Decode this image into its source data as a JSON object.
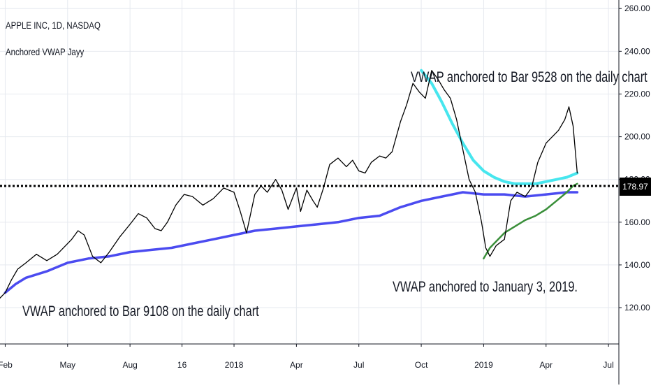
{
  "header": {
    "symbol_line": "APPLE INC, 1D, NASDAQ",
    "indicator_name": "Anchored VWAP Jayy"
  },
  "annotations": {
    "top": "VWAP anchored to Bar 9528 on the daily chart",
    "bottom_right": "VWAP anchored to January 3, 2019.",
    "bottom_left": "VWAP anchored to Bar 9108 on the daily chart"
  },
  "price_marker": {
    "label": "178.97",
    "value": 178.97
  },
  "colors": {
    "price": "#000000",
    "vwap_9108": "#4b4bf0",
    "vwap_9528": "#47e6ee",
    "vwap_jan2019": "#3a8f3a",
    "grid": "#e6e9ef"
  },
  "chart_data": {
    "type": "line",
    "x_unit": "months since Feb 2017",
    "xlim": [
      -0.25,
      29.5
    ],
    "ylim": [
      103,
      264
    ],
    "y_scale": "linear",
    "grid": true,
    "y_ticks": [
      120,
      140,
      160,
      180,
      200,
      220,
      240,
      260
    ],
    "y_tick_labels": [
      "120.00",
      "140.00",
      "160.00",
      "180.00",
      "200.00",
      "220.00",
      "240.00",
      "260.00"
    ],
    "x_ticks": [
      {
        "x": 0,
        "label": "Feb"
      },
      {
        "x": 3,
        "label": "May"
      },
      {
        "x": 6,
        "label": "Aug"
      },
      {
        "x": 8.5,
        "label": "16"
      },
      {
        "x": 11,
        "label": "2018"
      },
      {
        "x": 14,
        "label": "Apr"
      },
      {
        "x": 17,
        "label": "Jul"
      },
      {
        "x": 20,
        "label": "Oct"
      },
      {
        "x": 23,
        "label": "2019"
      },
      {
        "x": 26,
        "label": "Apr"
      },
      {
        "x": 29,
        "label": "Jul"
      }
    ],
    "series": [
      {
        "key": "price",
        "x": [
          -0.5,
          0.0,
          0.3,
          0.6,
          1.0,
          1.5,
          2.0,
          2.5,
          3.2,
          3.5,
          3.8,
          4.2,
          4.6,
          5.0,
          5.5,
          6.0,
          6.4,
          6.8,
          7.2,
          7.5,
          7.8,
          8.2,
          8.6,
          9.0,
          9.5,
          10.0,
          10.5,
          11.0,
          11.3,
          11.6,
          12.0,
          12.3,
          12.6,
          13.0,
          13.3,
          13.6,
          14.0,
          14.2,
          14.5,
          14.8,
          15.0,
          15.3,
          15.6,
          16.0,
          16.4,
          16.7,
          17.0,
          17.3,
          17.6,
          18.0,
          18.3,
          18.6,
          19.0,
          19.3,
          19.6,
          19.9,
          20.2,
          20.5,
          20.8,
          21.1,
          21.4,
          21.7,
          22.0,
          22.3,
          22.6,
          22.9,
          23.1,
          23.3,
          23.6,
          24.0,
          24.3,
          24.6,
          25.0,
          25.3,
          25.6,
          26.0,
          26.3,
          26.6,
          26.9,
          27.1,
          27.3,
          27.5
        ],
        "values": [
          122,
          127,
          133,
          138,
          141,
          145,
          142,
          145,
          152,
          156,
          154,
          144,
          141,
          146,
          153,
          159,
          164,
          162,
          157,
          156,
          160,
          168,
          173,
          172,
          168,
          171,
          176,
          174,
          165,
          155,
          173,
          177,
          174,
          180,
          175,
          166,
          176,
          165,
          175,
          170,
          167,
          176,
          187,
          190,
          186,
          189,
          184,
          183,
          188,
          191,
          190,
          193,
          207,
          215,
          225,
          221,
          218,
          231,
          227,
          222,
          218,
          208,
          194,
          180,
          174,
          160,
          148,
          144,
          149,
          152,
          170,
          174,
          172,
          176,
          188,
          197,
          200,
          203,
          208,
          214,
          205,
          183
        ]
      },
      {
        "key": "vwap_9108",
        "x": [
          0.0,
          0.5,
          1.0,
          2.0,
          3.0,
          4.0,
          5.0,
          6.0,
          7.0,
          8.0,
          9.0,
          10.0,
          11.0,
          12.0,
          13.0,
          14.0,
          15.0,
          16.0,
          17.0,
          18.0,
          18.5,
          19.0,
          20.0,
          21.0,
          21.5,
          22.0,
          23.0,
          24.0,
          25.0,
          26.0,
          27.0,
          27.5
        ],
        "values": [
          127,
          131,
          134,
          137,
          141,
          143,
          144,
          146,
          147,
          148,
          150,
          152,
          154,
          156,
          157,
          158,
          159,
          160,
          162,
          163,
          165,
          167,
          170,
          172,
          173,
          174,
          173,
          173,
          172,
          173,
          174,
          174
        ]
      },
      {
        "key": "vwap_9528",
        "x": [
          20.0,
          20.5,
          21.0,
          21.5,
          22.0,
          22.5,
          23.0,
          23.5,
          24.0,
          24.5,
          25.0,
          25.5,
          26.0,
          26.5,
          27.0,
          27.5
        ],
        "values": [
          231,
          225,
          216,
          206,
          197,
          189,
          184,
          181,
          179,
          178,
          178,
          178,
          179,
          180,
          181,
          183
        ]
      },
      {
        "key": "vwap_jan2019",
        "x": [
          23.0,
          23.3,
          23.7,
          24.0,
          24.5,
          25.0,
          25.5,
          26.0,
          26.5,
          27.0,
          27.3,
          27.5
        ],
        "values": [
          143,
          148,
          152,
          155,
          158,
          161,
          163,
          166,
          170,
          174,
          177,
          178
        ]
      }
    ]
  }
}
